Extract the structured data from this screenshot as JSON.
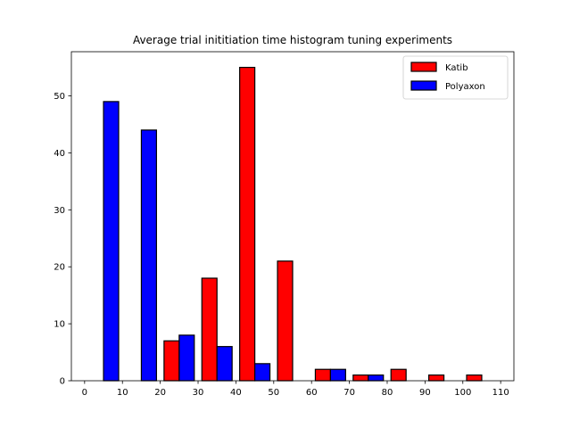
{
  "chart_data": {
    "type": "bar",
    "title": "Average trial inititiation time histogram tuning experiments",
    "xlabel": "",
    "ylabel": "",
    "xlim": [
      -3.5,
      113.5
    ],
    "ylim": [
      0,
      57.75
    ],
    "xticks": [
      0,
      10,
      20,
      30,
      40,
      50,
      60,
      70,
      80,
      90,
      100,
      110
    ],
    "yticks": [
      0,
      10,
      20,
      30,
      40,
      50
    ],
    "bin_edges": [
      0,
      10,
      20,
      30,
      40,
      50,
      60,
      70,
      80,
      90,
      100,
      110
    ],
    "legend_position": "top-right",
    "grid": false,
    "series": [
      {
        "name": "Katib",
        "color": "#ff0000",
        "values": [
          0,
          0,
          7,
          18,
          55,
          21,
          2,
          1,
          2,
          1,
          1
        ]
      },
      {
        "name": "Polyaxon",
        "color": "#0000ff",
        "values": [
          49,
          44,
          8,
          6,
          3,
          0,
          2,
          1,
          0,
          0,
          0
        ]
      }
    ]
  }
}
